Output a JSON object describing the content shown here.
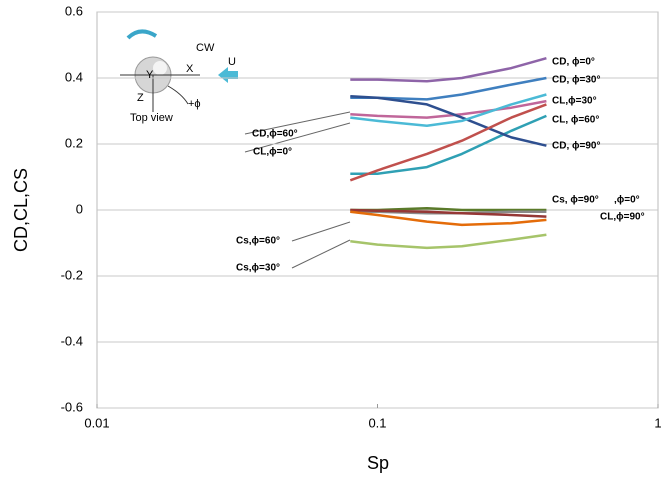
{
  "chart_data": {
    "type": "line",
    "x_label": "Sp",
    "y_label": "CD,CL,CS",
    "x": [
      0.08,
      0.1,
      0.15,
      0.2,
      0.3,
      0.4
    ],
    "x_log": true,
    "xlim": [
      0.01,
      1
    ],
    "xticks": [
      0.01,
      0.1,
      1
    ],
    "ylim": [
      -0.6,
      0.6
    ],
    "yticks": [
      0.6,
      0.4,
      0.2,
      0,
      -0.2,
      -0.4,
      -0.6
    ],
    "grid": true,
    "series": [
      {
        "name": "CD, ϕ=0°",
        "color": "#8e64a8",
        "values": [
          0.395,
          0.395,
          0.39,
          0.4,
          0.43,
          0.46
        ]
      },
      {
        "name": "CD, ϕ=30°",
        "color": "#3f7fbf",
        "values": [
          0.34,
          0.34,
          0.335,
          0.35,
          0.38,
          0.4
        ]
      },
      {
        "name": "CL,ϕ=30°",
        "color": "#c0669a",
        "values": [
          0.29,
          0.285,
          0.28,
          0.29,
          0.31,
          0.33
        ]
      },
      {
        "name": "CL, ϕ=60°",
        "color": "#2fa0b4",
        "values": [
          0.11,
          0.11,
          0.13,
          0.17,
          0.24,
          0.285
        ]
      },
      {
        "name": "CD, ϕ=90°",
        "color": "#2e4f8f",
        "values": [
          0.345,
          0.34,
          0.32,
          0.28,
          0.22,
          0.195
        ]
      },
      {
        "name": "CD,ϕ=60°",
        "color": "#4bbad6",
        "values": [
          0.28,
          0.27,
          0.255,
          0.27,
          0.32,
          0.35
        ]
      },
      {
        "name": "CL,ϕ=0°",
        "color": "#c0504d",
        "values": [
          0.09,
          0.12,
          0.17,
          0.21,
          0.28,
          0.32
        ]
      },
      {
        "name": "Cs, ϕ=90°",
        "color": "#5a7a2a",
        "values": [
          0,
          0,
          0.005,
          0,
          0,
          0
        ]
      },
      {
        "name": ",ϕ=0°",
        "color": "#8a8a8a",
        "values": [
          -0.005,
          -0.005,
          -0.01,
          -0.01,
          -0.005,
          -0.005
        ]
      },
      {
        "name": "CL,ϕ=90°",
        "color": "#953735",
        "values": [
          0,
          -0.002,
          -0.005,
          -0.01,
          -0.015,
          -0.02
        ]
      },
      {
        "name": "Cs,ϕ=60°",
        "color": "#e46c0a",
        "values": [
          -0.005,
          -0.015,
          -0.035,
          -0.045,
          -0.04,
          -0.03
        ]
      },
      {
        "name": "Cs,ϕ=30°",
        "color": "#a6c46a",
        "values": [
          -0.095,
          -0.105,
          -0.115,
          -0.11,
          -0.09,
          -0.075
        ]
      }
    ],
    "annotations": [
      "CW",
      "U",
      "Y",
      "X",
      "Z",
      "+ϕ",
      "Top view"
    ]
  }
}
